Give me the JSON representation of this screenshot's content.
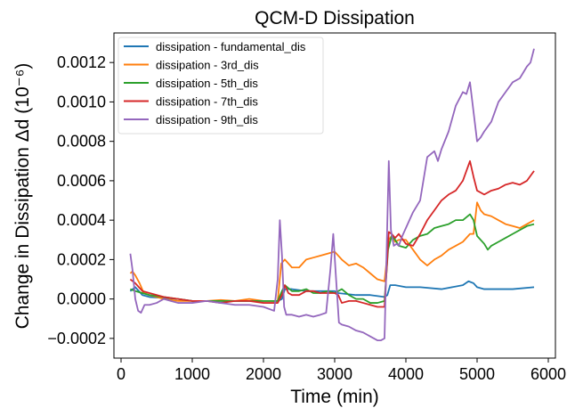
{
  "chart_data": {
    "type": "line",
    "title": "QCM-D Dissipation",
    "xlabel": "Time (min)",
    "ylabel": "Change in Dissipation Δd (10⁻⁶)",
    "xlim": [
      -100,
      6100
    ],
    "ylim": [
      -0.0003,
      0.00135
    ],
    "xticks": [
      0,
      1000,
      2000,
      3000,
      4000,
      5000,
      6000
    ],
    "xtick_labels": [
      "0",
      "1000",
      "2000",
      "3000",
      "4000",
      "5000",
      "6000"
    ],
    "yticks": [
      -0.0002,
      0,
      0.0002,
      0.0004,
      0.0006,
      0.0008,
      0.001,
      0.0012
    ],
    "ytick_labels": [
      "−0.0002",
      "0.0000",
      "0.0002",
      "0.0004",
      "0.0006",
      "0.0008",
      "0.0010",
      "0.0012"
    ],
    "grid": false,
    "legend_position": "top-left",
    "series": [
      {
        "name": "dissipation - fundamental_dis",
        "color": "#1f77b4",
        "x": [
          130,
          200,
          300,
          400,
          600,
          800,
          1000,
          1300,
          1600,
          1900,
          2100,
          2200,
          2260,
          2300,
          2400,
          2600,
          2800,
          2950,
          3000,
          3050,
          3300,
          3500,
          3700,
          3740,
          3780,
          3850,
          4000,
          4200,
          4500,
          4800,
          4880,
          4950,
          5000,
          5100,
          5300,
          5500,
          5800
        ],
        "y": [
          4e-05,
          6e-05,
          2e-05,
          1e-05,
          5e-06,
          0.0,
          -1e-05,
          -1e-05,
          -1e-05,
          -1e-05,
          -1e-05,
          -1e-05,
          0.0,
          5e-05,
          5e-05,
          4e-05,
          4e-05,
          4e-05,
          4e-05,
          3e-05,
          2e-05,
          2e-05,
          1e-05,
          2e-05,
          7e-05,
          7e-05,
          6e-05,
          6e-05,
          5e-05,
          7e-05,
          9e-05,
          8e-05,
          6e-05,
          5e-05,
          5e-05,
          5e-05,
          6e-05
        ]
      },
      {
        "name": "dissipation - 3rd_dis",
        "color": "#ff7f0e",
        "x": [
          130,
          160,
          200,
          260,
          320,
          400,
          500,
          600,
          800,
          1000,
          1200,
          1400,
          1600,
          1800,
          2000,
          2200,
          2250,
          2300,
          2400,
          2500,
          2600,
          2700,
          2800,
          2900,
          3000,
          3100,
          3200,
          3300,
          3400,
          3500,
          3600,
          3700,
          3760,
          3800,
          3850,
          3900,
          4000,
          4100,
          4200,
          4300,
          4400,
          4500,
          4600,
          4700,
          4800,
          4900,
          4950,
          5000,
          5050,
          5100,
          5200,
          5300,
          5400,
          5500,
          5600,
          5700,
          5800
        ],
        "y": [
          0.00013,
          0.00014,
          0.00012,
          8e-05,
          3e-05,
          2e-05,
          1e-05,
          0.0,
          -1e-05,
          -1e-05,
          -1e-05,
          -5e-06,
          -1e-05,
          0.0,
          -1e-05,
          -1e-05,
          0.00018,
          0.0002,
          0.00016,
          0.00016,
          0.0002,
          0.00021,
          0.00022,
          0.00023,
          0.00024,
          0.0002,
          0.00017,
          0.00018,
          0.00016,
          0.00013,
          0.0001,
          9e-05,
          0.0003,
          0.00032,
          0.00029,
          0.0003,
          0.0003,
          0.00025,
          0.0002,
          0.00017,
          0.0002,
          0.00022,
          0.00025,
          0.00027,
          0.00029,
          0.00033,
          0.00033,
          0.00049,
          0.00045,
          0.00043,
          0.00042,
          0.0004,
          0.00038,
          0.00037,
          0.00036,
          0.00038,
          0.0004
        ]
      },
      {
        "name": "dissipation - 5th_dis",
        "color": "#2ca02c",
        "x": [
          130,
          200,
          300,
          400,
          600,
          800,
          1000,
          1200,
          1400,
          1600,
          1800,
          2000,
          2200,
          2260,
          2300,
          2400,
          2500,
          2600,
          2700,
          2800,
          2900,
          3000,
          3100,
          3200,
          3300,
          3400,
          3500,
          3600,
          3700,
          3750,
          3800,
          3850,
          3900,
          4000,
          4100,
          4200,
          4300,
          4400,
          4500,
          4600,
          4700,
          4800,
          4900,
          4950,
          5000,
          5100,
          5150,
          5200,
          5300,
          5400,
          5500,
          5600,
          5700,
          5800
        ],
        "y": [
          5e-05,
          4e-05,
          3e-05,
          2e-05,
          1e-05,
          0.0,
          -1e-05,
          -1e-05,
          -1e-05,
          -1e-05,
          -1e-05,
          -1e-05,
          -1e-05,
          4e-05,
          7e-05,
          4e-05,
          4e-05,
          5e-05,
          3e-05,
          3e-05,
          4e-05,
          3e-05,
          5e-05,
          2e-05,
          0.0,
          0.0,
          -2e-05,
          -2e-05,
          -1e-05,
          0.00025,
          0.00032,
          0.0003,
          0.00027,
          0.00026,
          0.0003,
          0.00032,
          0.00033,
          0.00036,
          0.00037,
          0.00038,
          0.0004,
          0.0004,
          0.00043,
          0.0004,
          0.00032,
          0.00028,
          0.00025,
          0.00027,
          0.00029,
          0.00031,
          0.00033,
          0.00035,
          0.00037,
          0.00038
        ]
      },
      {
        "name": "dissipation - 7th_dis",
        "color": "#d62728",
        "x": [
          130,
          200,
          300,
          400,
          600,
          800,
          1000,
          1200,
          1400,
          1600,
          1800,
          2000,
          2200,
          2260,
          2300,
          2350,
          2400,
          2500,
          2600,
          2700,
          2800,
          2900,
          3000,
          3050,
          3100,
          3200,
          3300,
          3400,
          3500,
          3600,
          3700,
          3760,
          3800,
          3850,
          3900,
          4000,
          4100,
          4200,
          4300,
          4400,
          4500,
          4600,
          4700,
          4800,
          4900,
          4950,
          5000,
          5100,
          5200,
          5300,
          5400,
          5500,
          5600,
          5700,
          5800
        ],
        "y": [
          0.0001,
          8e-05,
          4e-05,
          3e-05,
          1e-05,
          0.0,
          -1e-05,
          -1e-05,
          -2e-05,
          -1e-05,
          -1e-05,
          -2e-05,
          -2e-05,
          2e-05,
          7e-05,
          3e-05,
          2e-05,
          2e-05,
          4e-05,
          4e-05,
          3e-05,
          3e-05,
          3e-05,
          2e-05,
          -2e-05,
          -1e-05,
          -1e-05,
          -2e-05,
          -3e-05,
          -4e-05,
          -4e-05,
          0.00034,
          0.00033,
          0.00031,
          0.00033,
          0.00028,
          0.00027,
          0.00033,
          0.0004,
          0.00045,
          0.0005,
          0.00053,
          0.00055,
          0.0006,
          0.0007,
          0.00062,
          0.00055,
          0.00053,
          0.00055,
          0.00056,
          0.00058,
          0.00059,
          0.00058,
          0.0006,
          0.00065
        ]
      },
      {
        "name": "dissipation - 9th_dis",
        "color": "#9467bd",
        "x": [
          130,
          160,
          200,
          240,
          280,
          330,
          400,
          500,
          600,
          700,
          800,
          1000,
          1200,
          1400,
          1600,
          1800,
          2000,
          2150,
          2200,
          2230,
          2260,
          2290,
          2320,
          2400,
          2500,
          2600,
          2700,
          2800,
          2880,
          2940,
          2980,
          3020,
          3060,
          3100,
          3200,
          3300,
          3400,
          3500,
          3600,
          3650,
          3700,
          3730,
          3760,
          3790,
          3830,
          3870,
          3900,
          3950,
          4000,
          4050,
          4100,
          4200,
          4300,
          4400,
          4450,
          4500,
          4600,
          4700,
          4800,
          4850,
          4900,
          4950,
          5000,
          5050,
          5100,
          5200,
          5300,
          5400,
          5500,
          5600,
          5700,
          5750,
          5800
        ],
        "y": [
          0.00023,
          0.00015,
          0.0,
          -6e-05,
          -7e-05,
          -3e-05,
          -3e-05,
          -2e-05,
          0.0,
          -1e-05,
          -2e-05,
          -2e-05,
          -1e-05,
          -2e-05,
          -3e-05,
          -3e-05,
          -4e-05,
          -6e-05,
          0.0001,
          0.0004,
          0.00022,
          -4e-05,
          -8e-05,
          -8e-05,
          -9e-05,
          -8e-05,
          -9e-05,
          -8e-05,
          -7e-05,
          0.00015,
          0.00033,
          0.0001,
          -0.00012,
          -0.00013,
          -0.00014,
          -0.00016,
          -0.00017,
          -0.00019,
          -0.00021,
          -0.00021,
          -0.0002,
          0.00025,
          0.0007,
          0.00035,
          0.00027,
          0.00028,
          0.00027,
          0.00032,
          0.00036,
          0.0004,
          0.00044,
          0.0005,
          0.00072,
          0.00075,
          0.0007,
          0.00076,
          0.00085,
          0.00098,
          0.00105,
          0.00104,
          0.0011,
          0.00095,
          0.0008,
          0.00082,
          0.00085,
          0.0009,
          0.001,
          0.00105,
          0.0011,
          0.00112,
          0.00118,
          0.0012,
          0.00127
        ]
      }
    ]
  }
}
